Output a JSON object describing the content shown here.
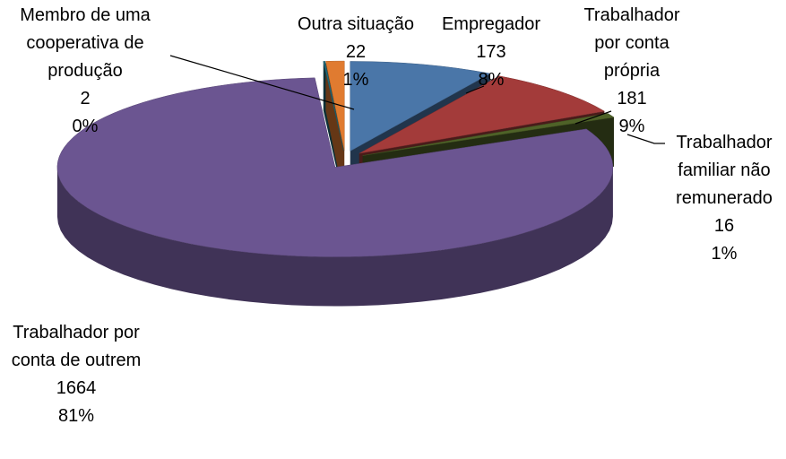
{
  "chart_data": {
    "type": "pie3d",
    "categories": [
      "Empregador",
      "Trabalhador por conta própria",
      "Trabalhador familiar não remunerado",
      "Trabalhador por conta de outrem",
      "Membro de uma cooperativa de produção",
      "Outra situação"
    ],
    "values": [
      173,
      181,
      16,
      1664,
      2,
      22
    ],
    "percent_labels": [
      "8%",
      "9%",
      "1%",
      "81%",
      "0%",
      "1%"
    ],
    "colors": [
      "#4a76a8",
      "#a33b3a",
      "#4f6228",
      "#6b5591",
      "#1f6a7a",
      "#e07b30"
    ]
  }
}
